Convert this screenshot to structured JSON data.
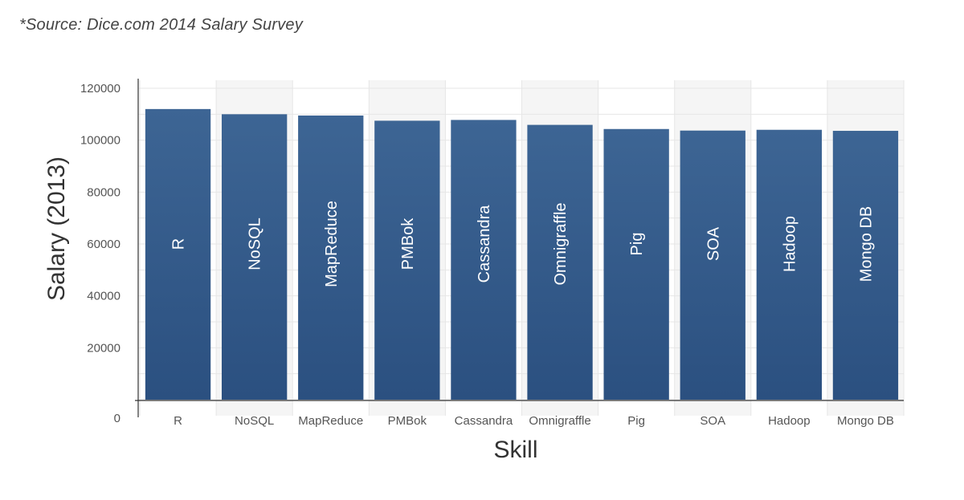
{
  "source_note": "*Source: Dice.com 2014 Salary Survey",
  "colors": {
    "bar_top": "#3d6594",
    "bar_bottom": "#2b5080",
    "band": "#f5f5f5",
    "grid": "#e6e6e6",
    "axis": "#333333"
  },
  "chart_data": {
    "type": "bar",
    "title": "",
    "xlabel": "Skill",
    "ylabel": "Salary (2013)",
    "ylim": [
      0,
      120000
    ],
    "yticks": [
      0,
      20000,
      40000,
      60000,
      80000,
      100000,
      120000
    ],
    "grid": true,
    "categories": [
      "R",
      "NoSQL",
      "MapReduce",
      "PMBok",
      "Cassandra",
      "Omnigraffle",
      "Pig",
      "SOA",
      "Hadoop",
      "Mongo DB"
    ],
    "values": [
      112000,
      110000,
      109500,
      107500,
      107800,
      105900,
      104300,
      103700,
      104000,
      103600
    ],
    "shaded_bands": [
      "NoSQL",
      "PMBok",
      "Omnigraffle",
      "SOA",
      "Mongo DB"
    ]
  }
}
